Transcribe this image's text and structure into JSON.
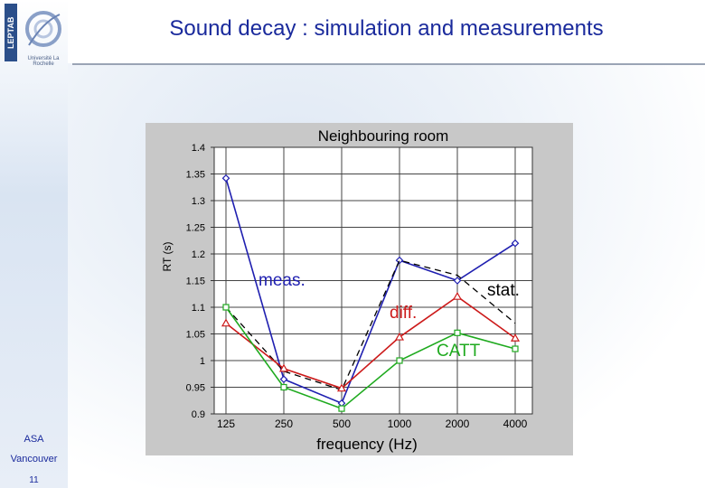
{
  "header": {
    "title": "Sound decay : simulation and measurements",
    "logo_letters": "LEPTAB",
    "logo_caption": "Université La Rochelle"
  },
  "footer": {
    "line1": "ASA",
    "line2": "Vancouver",
    "page_number": "11"
  },
  "chart_data": {
    "type": "line",
    "title": "Neighbouring room",
    "xlabel": "frequency (Hz)",
    "ylabel": "RT (s)",
    "categories": [
      "125",
      "250",
      "500",
      "1000",
      "2000",
      "4000"
    ],
    "ylim": [
      0.9,
      1.4
    ],
    "yticks": [
      "0.9",
      "0.95",
      "1",
      "1.05",
      "1.1",
      "1.15",
      "1.2",
      "1.25",
      "1.3",
      "1.35",
      "1.4"
    ],
    "grid": true,
    "series": [
      {
        "name": "meas.",
        "color": "#1f1fb0",
        "marker": "diamond",
        "dash": false,
        "values": [
          1.342,
          0.965,
          0.92,
          1.188,
          1.15,
          1.22
        ]
      },
      {
        "name": "stat.",
        "color": "#000000",
        "marker": "none",
        "dash": true,
        "values": [
          1.1,
          0.98,
          0.945,
          1.188,
          1.16,
          1.07
        ]
      },
      {
        "name": "diff.",
        "color": "#cc1a1a",
        "marker": "triangle",
        "dash": false,
        "values": [
          1.07,
          0.985,
          0.948,
          1.044,
          1.12,
          1.042
        ]
      },
      {
        "name": "CATT",
        "color": "#1faa1f",
        "marker": "square",
        "dash": false,
        "values": [
          1.1,
          0.95,
          0.91,
          1.0,
          1.052,
          1.022
        ]
      }
    ]
  },
  "series_labels": {
    "meas": "meas.",
    "stat": "stat.",
    "diff": "diff.",
    "catt": "CATT"
  }
}
